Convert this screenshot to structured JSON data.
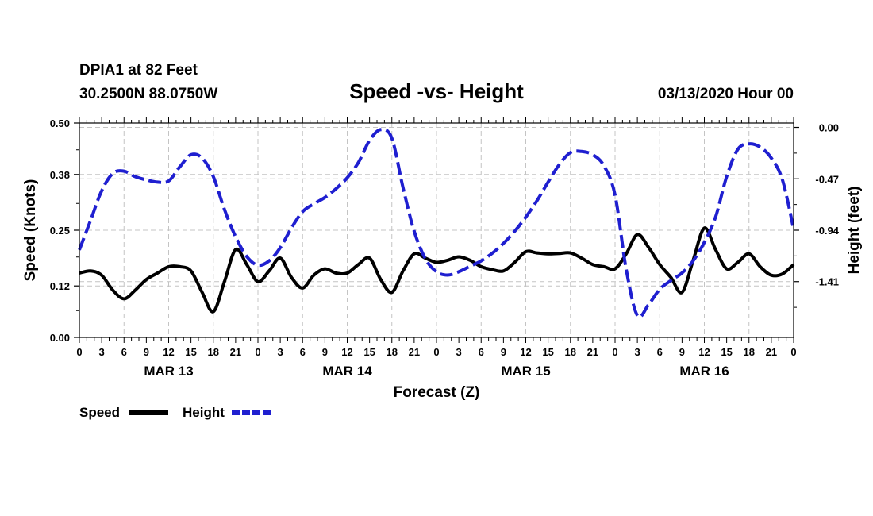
{
  "chart_data": {
    "type": "line",
    "station": "DPIA1 at 82 Feet",
    "location": "30.2500N 88.0750W",
    "title": "Speed -vs- Height",
    "run": "03/13/2020 Hour 00",
    "xlabel": "Forecast (Z)",
    "ylabel_left": "Speed (Knots)",
    "ylabel_right": "Height (feet)",
    "x_unit": "hours since 03/13/2020 00Z",
    "xlim": [
      0,
      96
    ],
    "x_tick_labels": [
      "0",
      "3",
      "6",
      "9",
      "12",
      "15",
      "18",
      "21",
      "0",
      "3",
      "6",
      "9",
      "12",
      "15",
      "18",
      "21",
      "0",
      "3",
      "6",
      "9",
      "12",
      "15",
      "18",
      "21",
      "0",
      "3",
      "6",
      "9",
      "12",
      "15",
      "18",
      "21",
      "0"
    ],
    "day_labels": [
      "MAR 13",
      "MAR 14",
      "MAR 15",
      "MAR 16"
    ],
    "left_axis": {
      "ylim": [
        0,
        0.5
      ],
      "tick_labels": [
        "0.00",
        "0.12",
        "0.25",
        "0.38",
        "0.50"
      ]
    },
    "right_axis": {
      "ylim": [
        -1.92,
        0.04
      ],
      "tick_labels": [
        "0.00",
        "-0.47",
        "-0.94",
        "-1.41"
      ]
    },
    "grid": true,
    "series": [
      {
        "name": "Speed",
        "axis": "left",
        "color": "#000000",
        "style": "solid",
        "points": [
          [
            0,
            0.15
          ],
          [
            1.5,
            0.155
          ],
          [
            3,
            0.145
          ],
          [
            4.5,
            0.11
          ],
          [
            6,
            0.09
          ],
          [
            7.5,
            0.11
          ],
          [
            9,
            0.135
          ],
          [
            10.5,
            0.15
          ],
          [
            12,
            0.165
          ],
          [
            13.5,
            0.165
          ],
          [
            15,
            0.155
          ],
          [
            16.5,
            0.105
          ],
          [
            18,
            0.06
          ],
          [
            19.5,
            0.13
          ],
          [
            21,
            0.205
          ],
          [
            22.5,
            0.17
          ],
          [
            24,
            0.13
          ],
          [
            25.5,
            0.155
          ],
          [
            27,
            0.185
          ],
          [
            28.5,
            0.14
          ],
          [
            30,
            0.115
          ],
          [
            31.5,
            0.145
          ],
          [
            33,
            0.16
          ],
          [
            34.5,
            0.15
          ],
          [
            36,
            0.15
          ],
          [
            37.5,
            0.17
          ],
          [
            39,
            0.185
          ],
          [
            40.5,
            0.135
          ],
          [
            42,
            0.105
          ],
          [
            43.5,
            0.155
          ],
          [
            45,
            0.195
          ],
          [
            46.5,
            0.185
          ],
          [
            48,
            0.175
          ],
          [
            49.5,
            0.18
          ],
          [
            51,
            0.188
          ],
          [
            52.5,
            0.18
          ],
          [
            54,
            0.165
          ],
          [
            55.5,
            0.158
          ],
          [
            57,
            0.155
          ],
          [
            58.5,
            0.175
          ],
          [
            60,
            0.2
          ],
          [
            61.5,
            0.197
          ],
          [
            63,
            0.195
          ],
          [
            64.5,
            0.196
          ],
          [
            66,
            0.197
          ],
          [
            67.5,
            0.185
          ],
          [
            69,
            0.17
          ],
          [
            70.5,
            0.165
          ],
          [
            72,
            0.16
          ],
          [
            73.5,
            0.195
          ],
          [
            75,
            0.24
          ],
          [
            76.5,
            0.21
          ],
          [
            78,
            0.17
          ],
          [
            79.5,
            0.14
          ],
          [
            81,
            0.105
          ],
          [
            82.5,
            0.18
          ],
          [
            84,
            0.255
          ],
          [
            85.5,
            0.205
          ],
          [
            87,
            0.16
          ],
          [
            88.5,
            0.175
          ],
          [
            90,
            0.195
          ],
          [
            91.5,
            0.165
          ],
          [
            93,
            0.145
          ],
          [
            94.5,
            0.148
          ],
          [
            96,
            0.17
          ]
        ]
      },
      {
        "name": "Height",
        "axis": "right",
        "color": "#1f1fd0",
        "style": "dashed",
        "points": [
          [
            0,
            -1.12
          ],
          [
            1.5,
            -0.85
          ],
          [
            3,
            -0.58
          ],
          [
            4.5,
            -0.42
          ],
          [
            6,
            -0.4
          ],
          [
            7.5,
            -0.45
          ],
          [
            9,
            -0.48
          ],
          [
            10.5,
            -0.5
          ],
          [
            12,
            -0.49
          ],
          [
            13.5,
            -0.36
          ],
          [
            15,
            -0.25
          ],
          [
            16.5,
            -0.28
          ],
          [
            18,
            -0.45
          ],
          [
            19.5,
            -0.75
          ],
          [
            21,
            -1.0
          ],
          [
            22.5,
            -1.18
          ],
          [
            24,
            -1.26
          ],
          [
            25.5,
            -1.22
          ],
          [
            27,
            -1.1
          ],
          [
            28.5,
            -0.92
          ],
          [
            30,
            -0.77
          ],
          [
            31.5,
            -0.7
          ],
          [
            33,
            -0.64
          ],
          [
            34.5,
            -0.56
          ],
          [
            36,
            -0.46
          ],
          [
            37.5,
            -0.32
          ],
          [
            39,
            -0.12
          ],
          [
            40.5,
            -0.02
          ],
          [
            42,
            -0.1
          ],
          [
            43.5,
            -0.55
          ],
          [
            45,
            -0.95
          ],
          [
            46.5,
            -1.2
          ],
          [
            48,
            -1.32
          ],
          [
            49.5,
            -1.35
          ],
          [
            51,
            -1.32
          ],
          [
            52.5,
            -1.27
          ],
          [
            54,
            -1.22
          ],
          [
            55.5,
            -1.15
          ],
          [
            57,
            -1.06
          ],
          [
            58.5,
            -0.95
          ],
          [
            60,
            -0.82
          ],
          [
            61.5,
            -0.67
          ],
          [
            63,
            -0.5
          ],
          [
            64.5,
            -0.34
          ],
          [
            66,
            -0.23
          ],
          [
            67.5,
            -0.22
          ],
          [
            69,
            -0.25
          ],
          [
            70.5,
            -0.35
          ],
          [
            72,
            -0.62
          ],
          [
            73.5,
            -1.3
          ],
          [
            75,
            -1.72
          ],
          [
            76.5,
            -1.62
          ],
          [
            78,
            -1.48
          ],
          [
            79.5,
            -1.4
          ],
          [
            81,
            -1.33
          ],
          [
            82.5,
            -1.22
          ],
          [
            84,
            -1.05
          ],
          [
            85.5,
            -0.82
          ],
          [
            87,
            -0.45
          ],
          [
            88.5,
            -0.2
          ],
          [
            90,
            -0.15
          ],
          [
            91.5,
            -0.18
          ],
          [
            93,
            -0.28
          ],
          [
            94.5,
            -0.48
          ],
          [
            96,
            -0.93
          ]
        ]
      }
    ]
  },
  "legend": {
    "speed_label": "Speed",
    "height_label": "Height"
  }
}
